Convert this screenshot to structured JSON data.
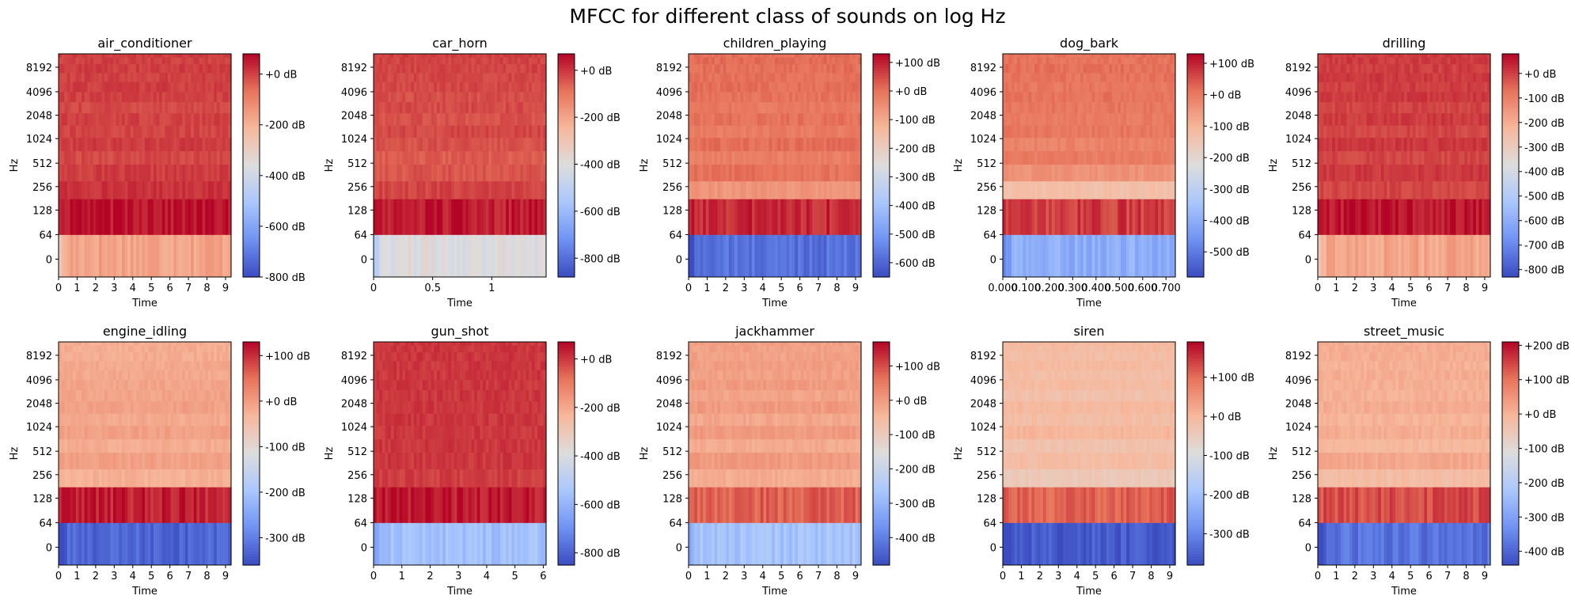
{
  "figure": {
    "title": "MFCC for different class of sounds on log Hz"
  },
  "colors": {
    "cmap": "coolwarm",
    "cmap_stops": [
      "#3b4cc0",
      "#6f92f3",
      "#aac7fd",
      "#dddddd",
      "#f7b89c",
      "#e7745b",
      "#b40426"
    ]
  },
  "chart_data": [
    {
      "type": "heatmap",
      "title": "air_conditioner",
      "xlabel": "Time",
      "ylabel": "Hz",
      "xlim": [
        0,
        9.3
      ],
      "xticks": [
        "0",
        "1",
        "2",
        "3",
        "4",
        "5",
        "6",
        "7",
        "8",
        "9"
      ],
      "xtick_values": [
        0,
        1,
        2,
        3,
        4,
        5,
        6,
        7,
        8,
        9
      ],
      "yticks": [
        "0",
        "64",
        "128",
        "256",
        "512",
        "1024",
        "2048",
        "4096",
        "8192"
      ],
      "y_scale": "log",
      "colorbar_range_db": [
        -800,
        80
      ],
      "colorbar_ticks": [
        "+0 dB",
        "-200 dB",
        "-400 dB",
        "-600 dB",
        "-800 dB"
      ],
      "colorbar_tick_values": [
        0,
        -200,
        -400,
        -600,
        -800
      ],
      "bands_db": [
        -165,
        65,
        20,
        5,
        -10,
        5,
        -5,
        0,
        -10,
        0,
        5,
        0,
        5,
        0,
        5
      ]
    },
    {
      "type": "heatmap",
      "title": "car_horn",
      "xlabel": "Time",
      "ylabel": "Hz",
      "xlim": [
        0,
        1.46
      ],
      "xticks": [
        "0",
        "0.5",
        "1"
      ],
      "xtick_values": [
        0,
        0.5,
        1
      ],
      "yticks": [
        "0",
        "64",
        "128",
        "256",
        "512",
        "1024",
        "2048",
        "4096",
        "8192"
      ],
      "y_scale": "log",
      "colorbar_range_db": [
        -880,
        70
      ],
      "colorbar_ticks": [
        "+0 dB",
        "-200 dB",
        "-400 dB",
        "-600 dB",
        "-800 dB"
      ],
      "colorbar_tick_values": [
        0,
        -200,
        -400,
        -600,
        -800
      ],
      "bands_db": [
        -400,
        40,
        -20,
        -45,
        -55,
        -40,
        -25,
        -40,
        -30,
        -35,
        -25,
        -25,
        -20,
        -20,
        -15
      ]
    },
    {
      "type": "heatmap",
      "title": "children_playing",
      "xlabel": "Time",
      "ylabel": "Hz",
      "xlim": [
        0,
        9.3
      ],
      "xticks": [
        "0",
        "1",
        "2",
        "3",
        "4",
        "5",
        "6",
        "7",
        "8",
        "9"
      ],
      "xtick_values": [
        0,
        1,
        2,
        3,
        4,
        5,
        6,
        7,
        8,
        9
      ],
      "yticks": [
        "0",
        "64",
        "128",
        "256",
        "512",
        "1024",
        "2048",
        "4096",
        "8192"
      ],
      "y_scale": "log",
      "colorbar_range_db": [
        -650,
        130
      ],
      "colorbar_ticks": [
        "+100 dB",
        "+0 dB",
        "-100 dB",
        "-200 dB",
        "-300 dB",
        "-400 dB",
        "-500 dB",
        "-600 dB"
      ],
      "colorbar_tick_values": [
        100,
        0,
        -100,
        -200,
        -300,
        -400,
        -500,
        -600
      ],
      "bands_db": [
        -580,
        90,
        -65,
        0,
        -20,
        5,
        -15,
        0,
        -10,
        0,
        5,
        0,
        5,
        10,
        5
      ]
    },
    {
      "type": "heatmap",
      "title": "dog_bark",
      "xlabel": "Time",
      "ylabel": "Hz",
      "xlim": [
        0,
        0.74
      ],
      "xticks": [
        "0.000",
        "0.100",
        "0.200",
        "0.300",
        "0.400",
        "0.500",
        "0.600",
        "0.700"
      ],
      "xtick_values": [
        0,
        0.1,
        0.2,
        0.3,
        0.4,
        0.5,
        0.6,
        0.7
      ],
      "yticks": [
        "0",
        "64",
        "128",
        "256",
        "512",
        "1024",
        "2048",
        "4096",
        "8192"
      ],
      "y_scale": "log",
      "colorbar_range_db": [
        -580,
        130
      ],
      "colorbar_ticks": [
        "+100 dB",
        "+0 dB",
        "-100 dB",
        "-200 dB",
        "-300 dB",
        "-400 dB",
        "-500 dB"
      ],
      "colorbar_tick_values": [
        100,
        0,
        -100,
        -200,
        -300,
        -400,
        -500
      ],
      "bands_db": [
        -400,
        70,
        -130,
        -40,
        0,
        -15,
        5,
        0,
        5,
        10,
        5,
        10,
        15,
        10,
        10
      ]
    },
    {
      "type": "heatmap",
      "title": "drilling",
      "xlabel": "Time",
      "ylabel": "Hz",
      "xlim": [
        0,
        9.3
      ],
      "xticks": [
        "0",
        "1",
        "2",
        "3",
        "4",
        "5",
        "6",
        "7",
        "8",
        "9"
      ],
      "xtick_values": [
        0,
        1,
        2,
        3,
        4,
        5,
        6,
        7,
        8,
        9
      ],
      "yticks": [
        "0",
        "64",
        "128",
        "256",
        "512",
        "1024",
        "2048",
        "4096",
        "8192"
      ],
      "y_scale": "log",
      "colorbar_range_db": [
        -830,
        80
      ],
      "colorbar_ticks": [
        "+0 dB",
        "-100 dB",
        "-200 dB",
        "-300 dB",
        "-400 dB",
        "-500 dB",
        "-600 dB",
        "-700 dB",
        "-800 dB"
      ],
      "colorbar_tick_values": [
        0,
        -100,
        -200,
        -300,
        -400,
        -500,
        -600,
        -700,
        -800
      ],
      "bands_db": [
        -180,
        60,
        -10,
        10,
        -10,
        10,
        -10,
        5,
        -5,
        5,
        0,
        5,
        0,
        5,
        5
      ]
    },
    {
      "type": "heatmap",
      "title": "engine_idling",
      "xlabel": "Time",
      "ylabel": "Hz",
      "xlim": [
        0,
        9.3
      ],
      "xticks": [
        "0",
        "1",
        "2",
        "3",
        "4",
        "5",
        "6",
        "7",
        "8",
        "9"
      ],
      "xtick_values": [
        0,
        1,
        2,
        3,
        4,
        5,
        6,
        7,
        8,
        9
      ],
      "yticks": [
        "0",
        "64",
        "128",
        "256",
        "512",
        "1024",
        "2048",
        "4096",
        "8192"
      ],
      "y_scale": "log",
      "colorbar_range_db": [
        -360,
        130
      ],
      "colorbar_ticks": [
        "+100 dB",
        "+0 dB",
        "-100 dB",
        "-200 dB",
        "-300 dB"
      ],
      "colorbar_tick_values": [
        100,
        0,
        -100,
        -200,
        -300
      ],
      "bands_db": [
        -330,
        110,
        -25,
        -5,
        -20,
        -5,
        -15,
        -5,
        -10,
        -10,
        -15,
        -15,
        -20,
        -20,
        -20
      ]
    },
    {
      "type": "heatmap",
      "title": "gun_shot",
      "xlabel": "Time",
      "ylabel": "Hz",
      "xlim": [
        0,
        6.1
      ],
      "xticks": [
        "0",
        "1",
        "2",
        "3",
        "4",
        "5",
        "6"
      ],
      "xtick_values": [
        0,
        1,
        2,
        3,
        4,
        5,
        6
      ],
      "yticks": [
        "0",
        "64",
        "128",
        "256",
        "512",
        "1024",
        "2048",
        "4096",
        "8192"
      ],
      "y_scale": "log",
      "colorbar_range_db": [
        -850,
        70
      ],
      "colorbar_ticks": [
        "+0 dB",
        "-200 dB",
        "-400 dB",
        "-600 dB",
        "-800 dB"
      ],
      "colorbar_tick_values": [
        0,
        -200,
        -400,
        -600,
        -800
      ],
      "bands_db": [
        -560,
        45,
        -10,
        0,
        0,
        0,
        0,
        0,
        0,
        0,
        0,
        0,
        0,
        0,
        0
      ]
    },
    {
      "type": "heatmap",
      "title": "jackhammer",
      "xlabel": "Time",
      "ylabel": "Hz",
      "xlim": [
        0,
        9.3
      ],
      "xticks": [
        "0",
        "1",
        "2",
        "3",
        "4",
        "5",
        "6",
        "7",
        "8",
        "9"
      ],
      "xtick_values": [
        0,
        1,
        2,
        3,
        4,
        5,
        6,
        7,
        8,
        9
      ],
      "yticks": [
        "0",
        "64",
        "128",
        "256",
        "512",
        "1024",
        "2048",
        "4096",
        "8192"
      ],
      "y_scale": "log",
      "colorbar_range_db": [
        -480,
        170
      ],
      "colorbar_ticks": [
        "+100 dB",
        "+0 dB",
        "-100 dB",
        "-200 dB",
        "-300 dB",
        "-400 dB"
      ],
      "colorbar_tick_values": [
        100,
        0,
        -100,
        -200,
        -300,
        -400
      ],
      "bands_db": [
        -270,
        80,
        -30,
        0,
        -25,
        0,
        -20,
        0,
        -15,
        0,
        -10,
        -5,
        -10,
        -10,
        -10
      ]
    },
    {
      "type": "heatmap",
      "title": "siren",
      "xlabel": "Time",
      "ylabel": "Hz",
      "xlim": [
        0,
        9.3
      ],
      "xticks": [
        "0",
        "1",
        "2",
        "3",
        "4",
        "5",
        "6",
        "7",
        "8",
        "9"
      ],
      "xtick_values": [
        0,
        1,
        2,
        3,
        4,
        5,
        6,
        7,
        8,
        9
      ],
      "yticks": [
        "0",
        "64",
        "128",
        "256",
        "512",
        "1024",
        "2048",
        "4096",
        "8192"
      ],
      "y_scale": "log",
      "colorbar_range_db": [
        -380,
        190
      ],
      "colorbar_ticks": [
        "+100 dB",
        "+0 dB",
        "-100 dB",
        "-200 dB",
        "-300 dB"
      ],
      "colorbar_tick_values": [
        100,
        0,
        -100,
        -200,
        -300
      ],
      "bands_db": [
        -360,
        110,
        -40,
        -10,
        -25,
        0,
        -15,
        -5,
        -20,
        -10,
        -15,
        -5,
        -15,
        -10,
        -5
      ]
    },
    {
      "type": "heatmap",
      "title": "street_music",
      "xlabel": "Time",
      "ylabel": "Hz",
      "xlim": [
        0,
        9.3
      ],
      "xticks": [
        "0",
        "1",
        "2",
        "3",
        "4",
        "5",
        "6",
        "7",
        "8",
        "9"
      ],
      "xtick_values": [
        0,
        1,
        2,
        3,
        4,
        5,
        6,
        7,
        8,
        9
      ],
      "yticks": [
        "0",
        "64",
        "128",
        "256",
        "512",
        "1024",
        "2048",
        "4096",
        "8192"
      ],
      "y_scale": "log",
      "colorbar_range_db": [
        -440,
        210
      ],
      "colorbar_ticks": [
        "+200 dB",
        "+100 dB",
        "+0 dB",
        "-100 dB",
        "-200 dB",
        "-300 dB",
        "-400 dB"
      ],
      "colorbar_tick_values": [
        200,
        100,
        0,
        -100,
        -200,
        -300,
        -400
      ],
      "bands_db": [
        -380,
        140,
        -20,
        20,
        -10,
        10,
        0,
        10,
        5,
        5,
        10,
        5,
        10,
        10,
        10
      ]
    }
  ]
}
